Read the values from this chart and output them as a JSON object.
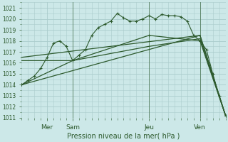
{
  "title": "Pression niveau de la mer( hPa )",
  "bg_color": "#cce8e8",
  "grid_color": "#aacccc",
  "line_color": "#2d5a2d",
  "ylim": [
    1011,
    1021.5
  ],
  "yticks": [
    1011,
    1012,
    1013,
    1014,
    1015,
    1016,
    1017,
    1018,
    1019,
    1020,
    1021
  ],
  "xlim": [
    0,
    96
  ],
  "day_positions": [
    12,
    24,
    60,
    84
  ],
  "day_labels": [
    "Mer",
    "Sam",
    "Jeu",
    "Ven"
  ],
  "vline_positions": [
    24,
    60,
    84
  ],
  "series1_x": [
    0,
    3,
    6,
    9,
    12,
    15,
    18,
    21,
    24,
    27,
    30,
    33,
    36,
    39,
    42,
    45,
    48,
    51,
    54,
    57,
    60,
    63,
    66,
    69,
    72,
    75,
    78,
    81,
    84,
    87,
    90,
    93,
    96
  ],
  "series1_y": [
    1014.0,
    1014.4,
    1014.8,
    1015.5,
    1016.5,
    1017.8,
    1018.0,
    1017.5,
    1016.2,
    1016.7,
    1017.2,
    1018.5,
    1019.2,
    1019.5,
    1019.8,
    1020.5,
    1020.1,
    1019.8,
    1019.8,
    1020.0,
    1020.3,
    1020.0,
    1020.4,
    1020.3,
    1020.3,
    1020.2,
    1019.8,
    1018.5,
    1018.0,
    1017.2,
    1015.0,
    1013.0,
    1011.2
  ],
  "series2_x": [
    0,
    24,
    60,
    84,
    96
  ],
  "series2_y": [
    1014.0,
    1016.2,
    1018.5,
    1018.0,
    1011.2
  ],
  "series3_x": [
    0,
    24,
    60,
    84,
    96
  ],
  "series3_y": [
    1016.2,
    1016.2,
    1017.5,
    1018.2,
    1011.2
  ],
  "series4_x": [
    0,
    84,
    96
  ],
  "series4_y": [
    1016.5,
    1018.5,
    1011.2
  ],
  "series5_x": [
    0,
    84,
    96
  ],
  "series5_y": [
    1014.0,
    1018.5,
    1011.2
  ]
}
